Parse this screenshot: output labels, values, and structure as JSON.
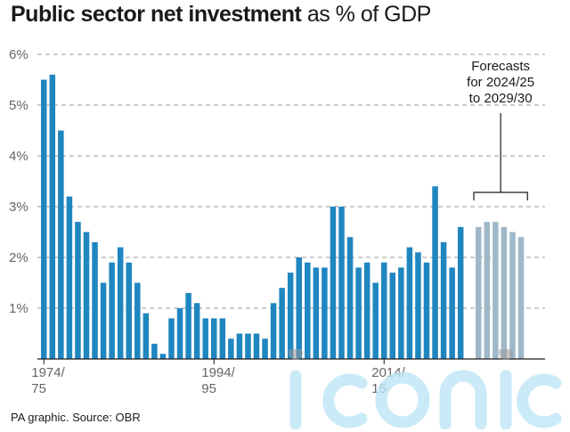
{
  "title": {
    "bold": "Public sector net investment",
    "rest": "as % of GDP"
  },
  "source": "PA graphic. Source: OBR",
  "annotation": [
    "Forecasts",
    "for 2024/25",
    "to 2029/30"
  ],
  "watermark": "iconic",
  "colors": {
    "actual": "#1f86c0",
    "forecast": "#9fb8c9",
    "grid": "#9a9a9a",
    "axis": "#1a1a1a",
    "tick": "#666666"
  },
  "chart_data": {
    "type": "bar",
    "title": "Public sector net investment as % of GDP",
    "ylim": [
      0,
      6
    ],
    "yticks": [
      "1%",
      "2%",
      "3%",
      "4%",
      "5%",
      "6%"
    ],
    "xticks": [
      {
        "index": 0,
        "lines": [
          "1974/",
          "75"
        ]
      },
      {
        "index": 20,
        "lines": [
          "1994/",
          "95"
        ]
      },
      {
        "index": 40,
        "lines": [
          "2014/",
          "15"
        ]
      }
    ],
    "grid": "horizontal dashed",
    "series": [
      {
        "values": [
          5.5,
          5.6,
          4.5,
          3.2,
          2.7,
          2.5,
          2.3,
          1.5,
          1.9,
          2.2,
          1.9,
          1.5,
          0.9,
          0.3,
          0.1,
          0.8,
          1.0,
          1.3,
          1.1,
          0.8,
          0.8,
          0.8,
          0.4,
          0.5,
          0.5,
          0.5,
          0.4,
          1.1,
          1.4,
          1.7,
          2.0,
          1.9,
          1.8,
          1.8,
          3.0,
          3.0,
          2.4,
          1.8,
          1.9,
          1.5,
          1.9,
          1.7,
          1.8,
          2.2,
          2.1,
          1.9,
          3.4,
          2.3,
          1.8,
          2.6
        ]
      },
      {
        "values": [
          2.6,
          2.7,
          2.7,
          2.6,
          2.5,
          2.4
        ]
      }
    ]
  }
}
